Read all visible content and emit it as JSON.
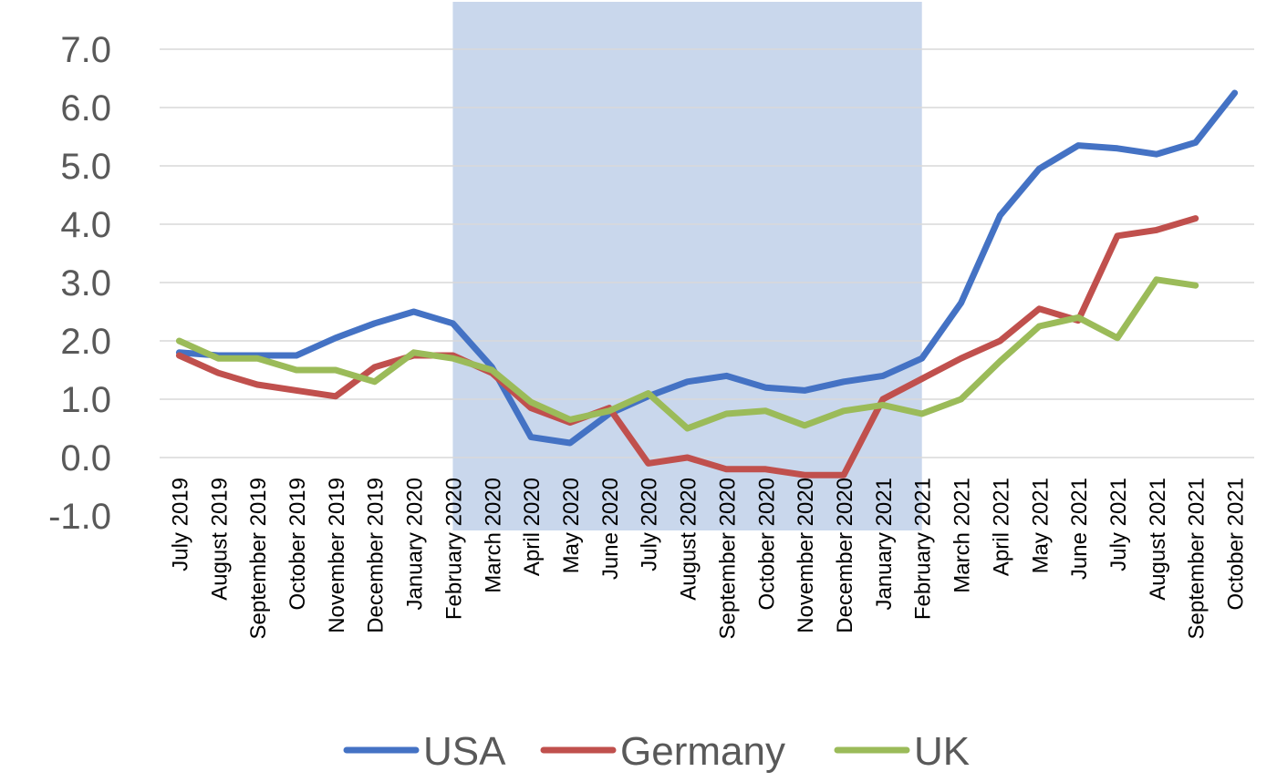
{
  "chart_data": {
    "type": "line",
    "categories": [
      "July 2019",
      "August 2019",
      "September 2019",
      "October 2019",
      "November 2019",
      "December 2019",
      "January 2020",
      "February 2020",
      "March 2020",
      "April 2020",
      "May 2020",
      "June 2020",
      "July 2020",
      "August 2020",
      "September 2020",
      "October 2020",
      "November 2020",
      "December 2020",
      "January 2021",
      "February 2021",
      "March 2021",
      "April 2021",
      "May 2021",
      "June 2021",
      "July 2021",
      "August 2021",
      "September 2021",
      "October 2021"
    ],
    "series": [
      {
        "name": "USA",
        "color": "#4472c4",
        "values": [
          1.8,
          1.75,
          1.75,
          1.75,
          2.05,
          2.3,
          2.5,
          2.3,
          1.55,
          0.35,
          0.25,
          0.75,
          1.05,
          1.3,
          1.4,
          1.2,
          1.15,
          1.3,
          1.4,
          1.7,
          2.65,
          4.15,
          4.95,
          5.35,
          5.3,
          5.2,
          5.4,
          6.25
        ]
      },
      {
        "name": "Germany",
        "color": "#c0504d",
        "values": [
          1.75,
          1.45,
          1.25,
          1.15,
          1.05,
          1.55,
          1.75,
          1.75,
          1.45,
          0.85,
          0.6,
          0.85,
          -0.1,
          0.0,
          -0.2,
          -0.2,
          -0.3,
          -0.3,
          1.0,
          1.35,
          1.7,
          2.0,
          2.55,
          2.35,
          3.8,
          3.9,
          4.1,
          null
        ]
      },
      {
        "name": "UK",
        "color": "#9bbb59",
        "values": [
          2.0,
          1.7,
          1.7,
          1.5,
          1.5,
          1.3,
          1.8,
          1.7,
          1.5,
          0.95,
          0.65,
          0.8,
          1.1,
          0.5,
          0.75,
          0.8,
          0.55,
          0.8,
          0.9,
          0.75,
          1.0,
          1.65,
          2.25,
          2.4,
          2.05,
          3.05,
          2.95,
          null
        ]
      }
    ],
    "yticks": [
      "7.0",
      "6.0",
      "5.0",
      "4.0",
      "3.0",
      "2.0",
      "1.0",
      "0.0",
      "-1.0"
    ],
    "ylim": [
      -1.0,
      7.0
    ],
    "shaded_region": {
      "from": "February 2020",
      "to": "February 2021",
      "color": "#c9d7ec"
    },
    "grid": true,
    "legend_position": "bottom"
  }
}
